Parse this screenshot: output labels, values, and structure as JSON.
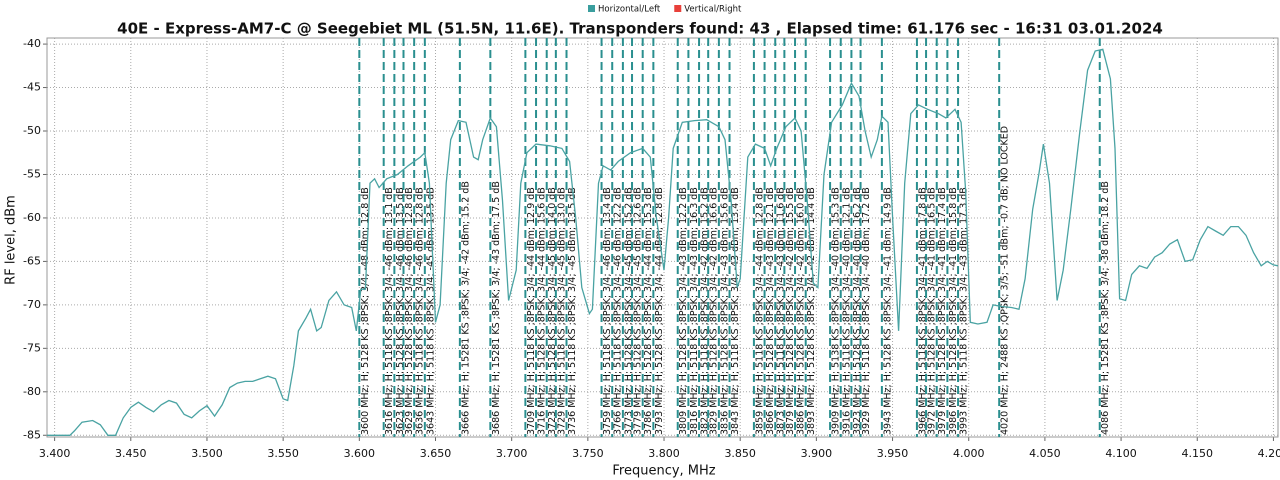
{
  "chart_data": {
    "type": "line",
    "title": "40E - Express-AM7-C @ Seegebiet ML (51.5N, 11.6E). Transponders found: 43 , Elapsed time: 61.176 sec - 16:31 03.01.2024",
    "x_label": "Frequency, MHz",
    "y_label": "RF level, dBm",
    "legend": [
      {
        "name": "Horizontal/Left",
        "color": "#3a9e9e"
      },
      {
        "name": "Vertical/Right",
        "color": "#e8403a"
      }
    ],
    "grid": true,
    "xlim": [
      3.395,
      4.203
    ],
    "ylim": [
      -85.2,
      -39.3
    ],
    "xticks": [
      {
        "value": 3.4,
        "label": "3.400"
      },
      {
        "value": 3.45,
        "label": "3.450"
      },
      {
        "value": 3.5,
        "label": "3.500"
      },
      {
        "value": 3.55,
        "label": "3.550"
      },
      {
        "value": 3.6,
        "label": "3.600"
      },
      {
        "value": 3.65,
        "label": "3.650"
      },
      {
        "value": 3.7,
        "label": "3.700"
      },
      {
        "value": 3.75,
        "label": "3.750"
      },
      {
        "value": 3.8,
        "label": "3.800"
      },
      {
        "value": 3.85,
        "label": "3.850"
      },
      {
        "value": 3.9,
        "label": "3.900"
      },
      {
        "value": 3.95,
        "label": "3.950"
      },
      {
        "value": 4.0,
        "label": "4.000"
      },
      {
        "value": 4.05,
        "label": "4.050"
      },
      {
        "value": 4.1,
        "label": "4.100"
      },
      {
        "value": 4.15,
        "label": "4.150"
      },
      {
        "value": 4.2,
        "label": "4.200"
      }
    ],
    "yticks": [
      -40,
      -45,
      -50,
      -55,
      -60,
      -65,
      -70,
      -75,
      -80,
      -85
    ],
    "x": [
      3.395,
      3.41,
      3.413,
      3.418,
      3.425,
      3.43,
      3.435,
      3.44,
      3.445,
      3.45,
      3.455,
      3.46,
      3.465,
      3.47,
      3.475,
      3.48,
      3.485,
      3.49,
      3.495,
      3.5,
      3.505,
      3.51,
      3.515,
      3.52,
      3.525,
      3.53,
      3.535,
      3.54,
      3.545,
      3.55,
      3.553,
      3.557,
      3.56,
      3.565,
      3.568,
      3.572,
      3.575,
      3.58,
      3.585,
      3.59,
      3.595,
      3.598,
      3.601,
      3.604,
      3.607,
      3.61,
      3.613,
      3.618,
      3.625,
      3.632,
      3.64,
      3.643,
      3.646,
      3.65,
      3.653,
      3.657,
      3.66,
      3.665,
      3.67,
      3.675,
      3.678,
      3.681,
      3.686,
      3.69,
      3.694,
      3.698,
      3.703,
      3.706,
      3.71,
      3.716,
      3.725,
      3.733,
      3.738,
      3.742,
      3.746,
      3.751,
      3.753,
      3.757,
      3.76,
      3.765,
      3.77,
      3.778,
      3.786,
      3.791,
      3.795,
      3.8,
      3.803,
      3.806,
      3.812,
      3.82,
      3.828,
      3.836,
      3.84,
      3.844,
      3.848,
      3.85,
      3.855,
      3.86,
      3.866,
      3.87,
      3.874,
      3.88,
      3.886,
      3.89,
      3.894,
      3.898,
      3.901,
      3.905,
      3.91,
      3.917,
      3.923,
      3.928,
      3.932,
      3.936,
      3.94,
      3.943,
      3.947,
      3.95,
      3.954,
      3.958,
      3.962,
      3.967,
      3.973,
      3.98,
      3.985,
      3.991,
      3.995,
      3.998,
      4.001,
      4.006,
      4.012,
      4.016,
      4.022,
      4.028,
      4.033,
      4.037,
      4.042,
      4.046,
      4.049,
      4.053,
      4.058,
      4.062,
      4.067,
      4.073,
      4.078,
      4.083,
      4.088,
      4.093,
      4.096,
      4.099,
      4.103,
      4.107,
      4.112,
      4.117,
      4.122,
      4.127,
      4.132,
      4.137,
      4.142,
      4.147,
      4.152,
      4.157,
      4.162,
      4.167,
      4.172,
      4.177,
      4.182,
      4.187,
      4.192,
      4.196,
      4.2,
      4.203
    ],
    "series": [
      {
        "name": "Horizontal/Left",
        "color": "#4aa3a3",
        "values": [
          -85,
          -85,
          -84.5,
          -83.5,
          -83.3,
          -83.8,
          -85,
          -85,
          -83,
          -81.8,
          -81.2,
          -81.8,
          -82.3,
          -81.5,
          -81,
          -81.3,
          -82.6,
          -83,
          -82.2,
          -81.6,
          -82.8,
          -81.5,
          -79.5,
          -79,
          -78.8,
          -78.8,
          -78.5,
          -78.2,
          -78.5,
          -80.8,
          -81,
          -77,
          -73,
          -71.5,
          -70.5,
          -73,
          -72.6,
          -69.5,
          -68.5,
          -70,
          -70.3,
          -73,
          -68.2,
          -68.2,
          -56,
          -55.5,
          -56.5,
          -55.5,
          -55,
          -54,
          -53,
          -52.5,
          -56,
          -72,
          -70,
          -56,
          -51,
          -48.8,
          -49,
          -53,
          -53.3,
          -51,
          -48.5,
          -49.5,
          -58,
          -69.5,
          -66,
          -56,
          -52.5,
          -51.5,
          -51.7,
          -52,
          -53.5,
          -60,
          -68,
          -71,
          -70.5,
          -56,
          -54,
          -54.5,
          -53.5,
          -52.5,
          -52,
          -53,
          -60,
          -66,
          -60,
          -52,
          -49,
          -48.8,
          -48.7,
          -49.5,
          -51,
          -58,
          -68,
          -67,
          -53,
          -51.5,
          -52,
          -54,
          -52,
          -49.5,
          -48.5,
          -50,
          -58,
          -67.5,
          -68,
          -55,
          -49,
          -47,
          -44.5,
          -46,
          -50,
          -53,
          -51,
          -48.3,
          -49,
          -60,
          -73,
          -56,
          -48,
          -47,
          -47.5,
          -48,
          -48.5,
          -47.5,
          -49,
          -57,
          -72,
          -72.2,
          -72,
          -70,
          -70.2,
          -70.3,
          -70.5,
          -67,
          -59,
          -55,
          -51.5,
          -56,
          -69.5,
          -66,
          -59,
          -50,
          -43,
          -40.8,
          -40.6,
          -44,
          -52,
          -69.3,
          -69.5,
          -66.5,
          -65.5,
          -65.8,
          -64.5,
          -64,
          -63,
          -62.5,
          -65,
          -64.8,
          -62.5,
          -61,
          -61.5,
          -62,
          -61,
          -61,
          -62,
          -64,
          -65.5,
          -65,
          -65.4,
          -65.5
        ]
      }
    ],
    "marker_color": "#2a8f8f",
    "markers": [
      {
        "x": 3.6,
        "label": "3600 MHz; H; 5128 KS ;8PSK; 3/4; -48 dBm; 12.8 dB"
      },
      {
        "x": 3.616,
        "label": "3616 MHz; H; 5118 KS ;8PSK; 3/4; -46 dBm; 13.1 dB"
      },
      {
        "x": 3.623,
        "label": "3623 MHz; H; 5128 KS ;8PSK; 3/4; -46 dBm; 13.5 dB"
      },
      {
        "x": 3.629,
        "label": "3629 MHz; H; 5128 KS ;8PSK; 3/4; -46 dBm; 12.8 dB"
      },
      {
        "x": 3.636,
        "label": "3636 MHz; H; 5118 KS ;8PSK; 3/4; -46 dBm; 12.8 dB"
      },
      {
        "x": 3.643,
        "label": "3643 MHz; H; 5118 KS ;8PSK; 3/4; -45 dBm; 13.5 dB"
      },
      {
        "x": 3.666,
        "label": "3666 MHz; H; 15281 KS ;8PSK; 3/4; -42 dBm; 15.2 dB"
      },
      {
        "x": 3.686,
        "label": "3686 MHz; H; 15281 KS ;8PSK; 3/4; -43 dBm; 17.5 dB"
      },
      {
        "x": 3.709,
        "label": "3709 MHz; H; 5118 KS ;8PSK; 3/4; -44 dBm; 12.9 dB"
      },
      {
        "x": 3.716,
        "label": "3716 MHz; H; 5128 KS ;8PSK; 3/4; -44 dBm; 15.6 dB"
      },
      {
        "x": 3.723,
        "label": "3723 MHz; H; 5128 KS ;8PSK; 3/4; -45 dBm; 14.0 dB"
      },
      {
        "x": 3.729,
        "label": "3729 MHz; H; 5118 KS ;8PSK; 3/4; -45 dBm; 13.0 dB"
      },
      {
        "x": 3.736,
        "label": "3736 MHz; H; 5118 KS ;8PSK; 3/4; -45 dBm; 13.5 dB"
      },
      {
        "x": 3.759,
        "label": "3759 MHz; H; 5118 KS ;8PSK; 3/4; -46 dBm; 13.4 dB"
      },
      {
        "x": 3.766,
        "label": "3766 MHz; H; 5118 KS ;8PSK; 3/4; -46 dBm; 12.2 dB"
      },
      {
        "x": 3.773,
        "label": "3773 MHz; H; 5128 KS ;8PSK; 3/4; -45 dBm; 15.2 dB"
      },
      {
        "x": 3.779,
        "label": "3779 MHz; H; 5128 KS ;8PSK; 3/4; -45 dBm; 12.6 dB"
      },
      {
        "x": 3.786,
        "label": "3786 MHz; H; 5128 KS ;8PSK; 3/4; -44 dBm; 15.3 dB"
      },
      {
        "x": 3.793,
        "label": "3793 MHz; H; 5128 KS ;8PSK; 3/4; -44 dBm; 12.8 dB"
      },
      {
        "x": 3.809,
        "label": "3809 MHz; H; 5128 KS ;8PSK; 3/4; -43 dBm; 12.2 dB"
      },
      {
        "x": 3.816,
        "label": "3816 MHz; H; 5118 KS ;8PSK; 3/4; -43 dBm; 16.3 dB"
      },
      {
        "x": 3.823,
        "label": "3823 MHz; H; 5118 KS ;8PSK; 3/4; -42 dBm; 15.2 dB"
      },
      {
        "x": 3.829,
        "label": "3829 MHz; H; 5128 KS ;8PSK; 3/4; -42 dBm; 16.6 dB"
      },
      {
        "x": 3.836,
        "label": "3836 MHz; H; 5128 KS ;8PSK; 3/4; -43 dBm; 15.6 dB"
      },
      {
        "x": 3.843,
        "label": "3843 MHz; H; 5118 KS ;8PSK; 3/4; -43 dBm; 13.4 dB"
      },
      {
        "x": 3.859,
        "label": "3859 MHz; H; 5118 KS ;8PSK; 3/4; -44 dBm; 12.8 dB"
      },
      {
        "x": 3.866,
        "label": "3866 MHz; H; 5128 KS ;8PSK; 3/4; -43 dBm; 12.1 dB"
      },
      {
        "x": 3.873,
        "label": "3873 MHz; H; 5118 KS ;8PSK; 3/4; -43 dBm; 11.6 dB"
      },
      {
        "x": 3.879,
        "label": "3879 MHz; H; 5128 KS ;8PSK; 3/4; -42 dBm; 15.5 dB"
      },
      {
        "x": 3.886,
        "label": "3886 MHz; H; 5128 KS ;8PSK; 3/4; -42 dBm; 16.0 dB"
      },
      {
        "x": 3.893,
        "label": "3893 MHz; H; 5128 KS ;8PSK; 3/4; -42 dBm; 14.4 dB"
      },
      {
        "x": 3.909,
        "label": "3909 MHz; H; 5138 KS ;8PSK; 3/4; -40 dBm; 15.3 dB"
      },
      {
        "x": 3.916,
        "label": "3916 MHz; H; 5118 KS ;8PSK; 3/4; -40 dBm; 12.1 dB"
      },
      {
        "x": 3.923,
        "label": "3923 MHz; H; 5128 KS ;8PSK; 3/4; -40 dBm; 16.2 dB"
      },
      {
        "x": 3.929,
        "label": "3929 MHz; H; 5118 KS ;8PSK; 3/4; -40 dBm; 17.2 dB"
      },
      {
        "x": 3.943,
        "label": "3943 MHz; H; 5128 KS ;8PSK; 3/4; -41 dBm; 14.9 dB"
      },
      {
        "x": 3.966,
        "label": "3966 MHz; H; 5118 KS ;8PSK; 3/4; -41 dBm; 17.8 dB"
      },
      {
        "x": 3.972,
        "label": "3972 MHz; H; 5128 KS ;8PSK; 3/4; -41 dBm; 16.5 dB"
      },
      {
        "x": 3.979,
        "label": "3979 MHz; H; 5128 KS ;8PSK; 3/4; -41 dBm; 17.4 dB"
      },
      {
        "x": 3.986,
        "label": "3986 MHz; H; 5128 KS ;8PSK; 3/4; -41 dBm; 15.8 dB"
      },
      {
        "x": 3.993,
        "label": "3993 MHz; H; 5118 KS ;8PSK; 3/4; -43 dBm; 17.3 dB"
      },
      {
        "x": 4.02,
        "label": "4020 MHz; H; 2488 KS ;QPSK; 3/5; -51 dBm; -0.7 dB; NO LOCKED"
      },
      {
        "x": 4.086,
        "label": "4086 MHz; H; 15281 KS ;8PSK; 3/4; -38 dBm; 18.2 dB"
      }
    ]
  }
}
